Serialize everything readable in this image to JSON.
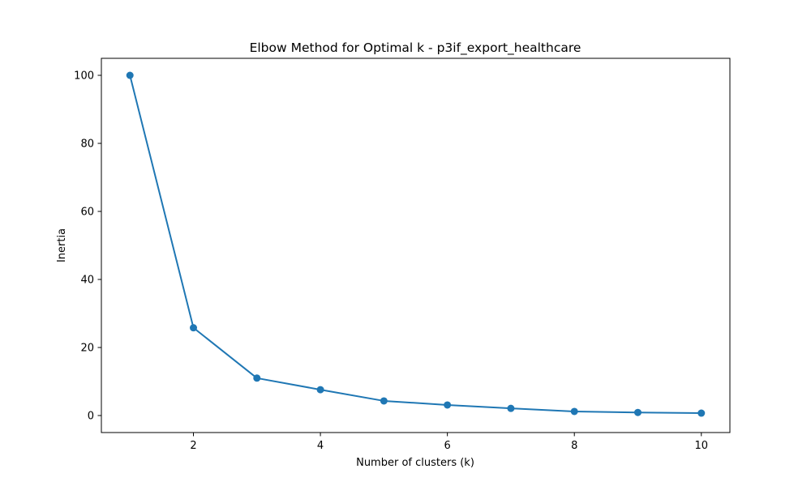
{
  "chart_data": {
    "type": "line",
    "title": "Elbow Method for Optimal k - p3if_export_healthcare",
    "xlabel": "Number of clusters (k)",
    "ylabel": "Inertia",
    "xlim": [
      0.55,
      10.45
    ],
    "ylim": [
      -5,
      105
    ],
    "xticks": [
      2,
      4,
      6,
      8,
      10
    ],
    "yticks": [
      0,
      20,
      40,
      60,
      80,
      100
    ],
    "grid": false,
    "legend": "none",
    "series": [
      {
        "x": [
          1,
          2,
          3,
          4,
          5,
          6,
          7,
          8,
          9,
          10
        ],
        "values": [
          100.0,
          25.8,
          11.0,
          7.6,
          4.3,
          3.1,
          2.1,
          1.2,
          0.9,
          0.7
        ],
        "color": "#1f77b4",
        "marker": "circle"
      }
    ]
  }
}
